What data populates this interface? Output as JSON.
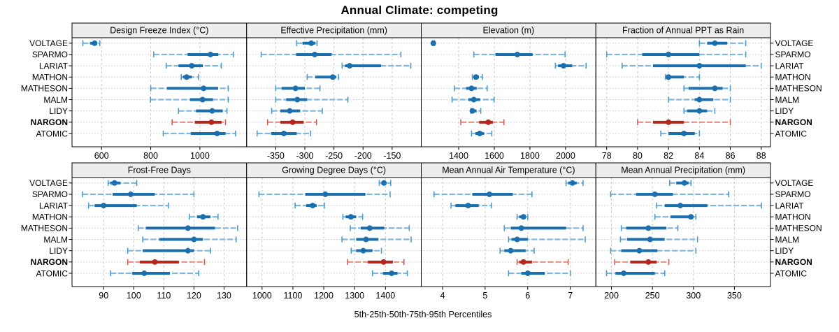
{
  "title": "Annual Climate: competing",
  "caption": "5th-25th-50th-75th-95th Percentiles",
  "categories": [
    "VOLTAGE",
    "SPARMO",
    "LARIAT",
    "MATHON",
    "MATHESON",
    "MALM",
    "LIDY",
    "NARGON",
    "ATOMIC"
  ],
  "highlighted_category": "NARGON",
  "colors": {
    "primary": "#1a6faf",
    "primary_light": "#7eb6dc",
    "primary_cap": "#4f9aca",
    "highlight": "#b5271d",
    "highlight_light": "#e09086",
    "highlight_cap": "#cc6256",
    "header_bg": "#ededed",
    "grid": "#c9c9c9",
    "border": "#000000"
  },
  "chart_data": {
    "type": "dotplot-interval",
    "percentiles": [
      5,
      25,
      50,
      75,
      95
    ],
    "layout": {
      "rows": 2,
      "cols": 4
    },
    "panels": [
      {
        "title": "Design Freeze Index (°C)",
        "row": 0,
        "col": 0,
        "domain": [
          480,
          1190
        ],
        "ticks": [
          600,
          800,
          1000
        ],
        "values": [
          [
            524,
            553,
            572,
            582,
            593
          ],
          [
            812,
            950,
            1043,
            1075,
            1136
          ],
          [
            863,
            913,
            967,
            1012,
            1087
          ],
          [
            924,
            931,
            946,
            967,
            994
          ],
          [
            800,
            866,
            1015,
            1074,
            1115
          ],
          [
            799,
            960,
            1011,
            1053,
            1115
          ],
          [
            913,
            984,
            1050,
            1093,
            1110
          ],
          [
            887,
            979,
            1047,
            1088,
            1104
          ],
          [
            851,
            963,
            1070,
            1104,
            1145
          ]
        ]
      },
      {
        "title": "Effective Precipitation (mm)",
        "row": 0,
        "col": 1,
        "domain": [
          -400,
          -100
        ],
        "ticks": [
          -350,
          -300,
          -250,
          -200,
          -150
        ],
        "values": [
          [
            -314,
            -304,
            -289,
            -282,
            -279
          ],
          [
            -375,
            -315,
            -283,
            -254,
            -135
          ],
          [
            -236,
            -231,
            -223,
            -169,
            -118
          ],
          [
            -296,
            -282,
            -252,
            -246,
            -242
          ],
          [
            -350,
            -340,
            -316,
            -300,
            -274
          ],
          [
            -350,
            -332,
            -313,
            -296,
            -226
          ],
          [
            -357,
            -342,
            -326,
            -308,
            -270
          ],
          [
            -364,
            -342,
            -321,
            -302,
            -280
          ],
          [
            -382,
            -358,
            -336,
            -314,
            -290
          ]
        ]
      },
      {
        "title": "Elevation (m)",
        "row": 0,
        "col": 2,
        "domain": [
          1190,
          2170
        ],
        "ticks": [
          1400,
          1600,
          1800,
          2000
        ],
        "values": [
          [
            1252,
            1256,
            1258,
            1261,
            1264
          ],
          [
            1485,
            1606,
            1729,
            1815,
            1997
          ],
          [
            1943,
            1958,
            1988,
            2037,
            2115
          ],
          [
            1477,
            1485,
            1497,
            1514,
            1533
          ],
          [
            1376,
            1442,
            1472,
            1501,
            1560
          ],
          [
            1363,
            1455,
            1485,
            1520,
            1599
          ],
          [
            1468,
            1472,
            1477,
            1501,
            1524
          ],
          [
            1412,
            1515,
            1566,
            1592,
            1654
          ],
          [
            1472,
            1494,
            1518,
            1543,
            1586
          ]
        ]
      },
      {
        "title": "Fraction of Annual PPT as Rain",
        "row": 0,
        "col": 3,
        "domain": [
          77.3,
          88.6
        ],
        "ticks": [
          78,
          80,
          82,
          84,
          86,
          88
        ],
        "values": [
          [
            84,
            84.5,
            85,
            85.8,
            87
          ],
          [
            78,
            80.3,
            82,
            84,
            87
          ],
          [
            79,
            81,
            84,
            87,
            88
          ],
          [
            81.8,
            81.9,
            82,
            83,
            84
          ],
          [
            83,
            83.3,
            85,
            85.5,
            86
          ],
          [
            82,
            83.7,
            84,
            84.9,
            86
          ],
          [
            83,
            83.2,
            84,
            84.5,
            85
          ],
          [
            80,
            81,
            82,
            83,
            86
          ],
          [
            81.5,
            82,
            83,
            83.7,
            84
          ]
        ]
      },
      {
        "title": "Frost-Free Days",
        "row": 1,
        "col": 0,
        "domain": [
          79.5,
          137.5
        ],
        "ticks": [
          90,
          100,
          110,
          120,
          130
        ],
        "values": [
          [
            91.5,
            92.2,
            93.6,
            95.6,
            101
          ],
          [
            83,
            93,
            99,
            107,
            120
          ],
          [
            85,
            87,
            90,
            101,
            111.5
          ],
          [
            118.5,
            121,
            123,
            125.5,
            128
          ],
          [
            101.5,
            104,
            118,
            127,
            134.5
          ],
          [
            103,
            108.5,
            120,
            123,
            134
          ],
          [
            98,
            103,
            118,
            120,
            125.5
          ],
          [
            98,
            102,
            107,
            115,
            123.5
          ],
          [
            92.3,
            99.5,
            103.5,
            112,
            121.6
          ]
        ]
      },
      {
        "title": "Growing Degree Days (°C)",
        "row": 1,
        "col": 1,
        "domain": [
          950,
          1516
        ],
        "ticks": [
          1000,
          1100,
          1200,
          1300,
          1400
        ],
        "values": [
          [
            1380,
            1387,
            1395,
            1403,
            1417
          ],
          [
            990,
            1140,
            1205,
            1335,
            1415
          ],
          [
            1107,
            1143,
            1164,
            1177,
            1202
          ],
          [
            1262,
            1271,
            1288,
            1305,
            1326
          ],
          [
            1286,
            1320,
            1349,
            1396,
            1477
          ],
          [
            1259,
            1305,
            1337,
            1377,
            1483
          ],
          [
            1289,
            1305,
            1328,
            1358,
            1387
          ],
          [
            1277,
            1343,
            1394,
            1424,
            1460
          ],
          [
            1358,
            1392,
            1420,
            1439,
            1471
          ]
        ]
      },
      {
        "title": "Mean Annual Air Temperature (°C)",
        "row": 1,
        "col": 2,
        "domain": [
          3.5,
          7.6
        ],
        "ticks": [
          4,
          5,
          6,
          7
        ],
        "values": [
          [
            6.9,
            6.95,
            7.05,
            7.15,
            7.3
          ],
          [
            3.8,
            4.7,
            5.1,
            5.65,
            6.1
          ],
          [
            4.2,
            4.3,
            4.6,
            4.85,
            5.15
          ],
          [
            5.75,
            5.8,
            5.9,
            5.95,
            6.0
          ],
          [
            5.45,
            5.6,
            5.85,
            6.9,
            7.3
          ],
          [
            5.55,
            5.62,
            5.75,
            6.0,
            7.35
          ],
          [
            5.35,
            5.45,
            5.6,
            5.95,
            6.15
          ],
          [
            5.75,
            5.8,
            5.9,
            6.1,
            6.95
          ],
          [
            5.55,
            5.85,
            6.0,
            6.4,
            7.0
          ]
        ]
      },
      {
        "title": "Mean Annual Precipitation (mm)",
        "row": 1,
        "col": 3,
        "domain": [
          181,
          394
        ],
        "ticks": [
          200,
          250,
          300,
          350
        ],
        "values": [
          [
            271,
            279,
            289,
            294,
            297
          ],
          [
            199,
            230,
            253,
            275,
            343
          ],
          [
            255,
            265,
            284,
            317,
            383
          ],
          [
            253,
            272,
            297,
            300,
            303
          ],
          [
            212,
            218,
            245,
            267,
            281
          ],
          [
            211,
            219,
            247,
            265,
            305
          ],
          [
            199,
            212,
            234,
            256,
            303
          ],
          [
            204,
            223,
            245,
            255,
            270
          ],
          [
            194,
            205,
            215,
            253,
            265
          ]
        ]
      }
    ]
  }
}
